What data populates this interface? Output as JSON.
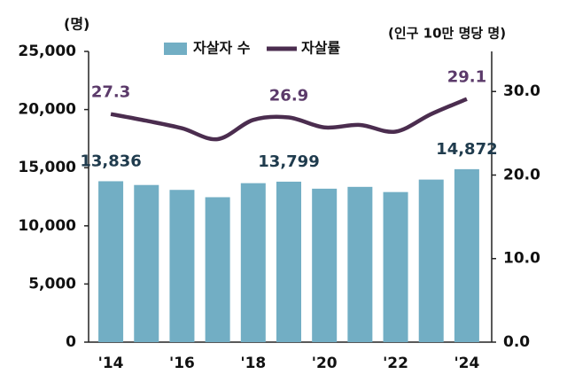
{
  "chart_data": {
    "type": "bar-line",
    "y_axis_label": "(명)",
    "y2_axis_label": "(인구 10만 명당 명)",
    "categories": [
      "'14",
      null,
      "'16",
      null,
      "'18",
      null,
      "'20",
      null,
      "'22",
      null,
      "'24"
    ],
    "series": [
      {
        "name": "자살자 수",
        "type": "bar",
        "color": "#72aec4",
        "values": [
          13836,
          13513,
          13092,
          12463,
          13670,
          13799,
          13195,
          13352,
          12906,
          13978,
          14872
        ],
        "value_labels": [
          "13,836",
          null,
          null,
          null,
          null,
          "13,799",
          null,
          null,
          null,
          null,
          "14,872"
        ]
      },
      {
        "name": "자살률",
        "type": "line",
        "axis": "y2",
        "color": "#4b2d4f",
        "values": [
          27.3,
          26.5,
          25.6,
          24.3,
          26.6,
          26.9,
          25.7,
          26.0,
          25.2,
          27.3,
          29.1
        ],
        "value_labels": [
          "27.3",
          null,
          null,
          null,
          null,
          "26.9",
          null,
          null,
          null,
          null,
          "29.1"
        ]
      }
    ],
    "ylim": [
      0,
      25000
    ],
    "yticks": [
      0,
      {
        "value": 5000,
        "label": "5,000"
      },
      {
        "value": 10000,
        "label": "10,000"
      },
      {
        "value": 15000,
        "label": "15,000"
      },
      {
        "value": 20000,
        "label": "20,000"
      },
      {
        "value": 25000,
        "label": "25,000"
      }
    ],
    "y2lim": [
      0,
      34.8
    ],
    "y2ticks": [
      {
        "value": 0,
        "label": "0.0"
      },
      {
        "value": 10,
        "label": "10.0"
      },
      {
        "value": 20,
        "label": "20.0"
      },
      {
        "value": 30,
        "label": "30.0"
      }
    ]
  }
}
